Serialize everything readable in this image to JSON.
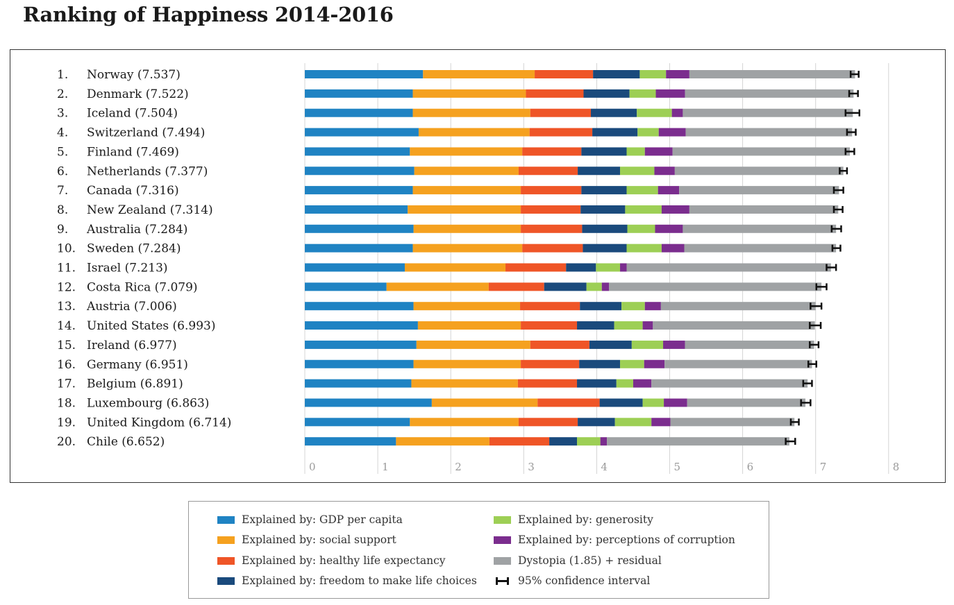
{
  "title": "Ranking of Happiness 2014-2016",
  "chart_data": {
    "type": "bar",
    "orientation": "horizontal",
    "stacked": true,
    "title": "Ranking of Happiness 2014-2016",
    "xlim": [
      0,
      8
    ],
    "xticks": [
      "0",
      "1",
      "2",
      "3",
      "4",
      "5",
      "6",
      "7",
      "8"
    ],
    "grid": true,
    "legend_position": "bottom",
    "ranks": [
      "1.",
      "2.",
      "3.",
      "4.",
      "5.",
      "6.",
      "7.",
      "8.",
      "9.",
      "10.",
      "11.",
      "12.",
      "13.",
      "14.",
      "15.",
      "16.",
      "17.",
      "18.",
      "19.",
      "20."
    ],
    "categories": [
      "Norway (7.537)",
      "Denmark (7.522)",
      "Iceland (7.504)",
      "Switzerland (7.494)",
      "Finland (7.469)",
      "Netherlands (7.377)",
      "Canada (7.316)",
      "New Zealand (7.314)",
      "Australia (7.284)",
      "Sweden (7.284)",
      "Israel (7.213)",
      "Costa Rica (7.079)",
      "Austria (7.006)",
      "United States (6.993)",
      "Ireland (6.977)",
      "Germany (6.951)",
      "Belgium (6.891)",
      "Luxembourg (6.863)",
      "United Kingdom (6.714)",
      "Chile (6.652)"
    ],
    "series": [
      {
        "name": "Explained by: GDP per capita",
        "color": "#1f83c3",
        "values": [
          1.62,
          1.48,
          1.48,
          1.56,
          1.44,
          1.5,
          1.48,
          1.41,
          1.49,
          1.48,
          1.37,
          1.12,
          1.49,
          1.55,
          1.53,
          1.49,
          1.46,
          1.74,
          1.44,
          1.25
        ]
      },
      {
        "name": "Explained by: social support",
        "color": "#f5a11f",
        "values": [
          1.53,
          1.55,
          1.61,
          1.52,
          1.54,
          1.43,
          1.48,
          1.55,
          1.47,
          1.5,
          1.38,
          1.4,
          1.46,
          1.41,
          1.56,
          1.47,
          1.46,
          1.45,
          1.49,
          1.28
        ]
      },
      {
        "name": "Explained by: healthy life expectancy",
        "color": "#ef5527",
        "values": [
          0.8,
          0.79,
          0.83,
          0.86,
          0.81,
          0.81,
          0.83,
          0.82,
          0.84,
          0.83,
          0.83,
          0.76,
          0.82,
          0.77,
          0.81,
          0.8,
          0.81,
          0.85,
          0.81,
          0.82
        ]
      },
      {
        "name": "Explained by: freedom to make life choices",
        "color": "#1a4a7c",
        "values": [
          0.64,
          0.63,
          0.63,
          0.62,
          0.62,
          0.58,
          0.62,
          0.61,
          0.62,
          0.6,
          0.41,
          0.58,
          0.57,
          0.51,
          0.58,
          0.56,
          0.54,
          0.59,
          0.51,
          0.38
        ]
      },
      {
        "name": "Explained by: generosity",
        "color": "#9dcf55",
        "values": [
          0.36,
          0.36,
          0.48,
          0.29,
          0.25,
          0.47,
          0.43,
          0.5,
          0.38,
          0.48,
          0.33,
          0.21,
          0.32,
          0.39,
          0.43,
          0.33,
          0.23,
          0.29,
          0.5,
          0.32
        ]
      },
      {
        "name": "Explained by: perceptions of corruption",
        "color": "#7b2d8e",
        "values": [
          0.32,
          0.4,
          0.15,
          0.37,
          0.38,
          0.28,
          0.29,
          0.38,
          0.38,
          0.31,
          0.09,
          0.1,
          0.22,
          0.14,
          0.3,
          0.28,
          0.25,
          0.32,
          0.26,
          0.09
        ]
      },
      {
        "name": "Dystopia (1.85) + residual",
        "color": "#9fa2a4",
        "values": [
          2.27,
          2.31,
          2.33,
          2.28,
          2.43,
          2.31,
          2.19,
          2.04,
          2.1,
          2.08,
          2.8,
          2.91,
          2.12,
          2.22,
          1.77,
          2.02,
          2.14,
          1.62,
          1.7,
          2.5
        ]
      }
    ],
    "confidence_interval": {
      "name": "95% confidence interval",
      "low": [
        7.48,
        7.46,
        7.41,
        7.43,
        7.41,
        7.33,
        7.25,
        7.25,
        7.22,
        7.23,
        7.15,
        7.01,
        6.93,
        6.92,
        6.92,
        6.9,
        6.83,
        6.8,
        6.66,
        6.59
      ],
      "high": [
        7.59,
        7.58,
        7.6,
        7.55,
        7.53,
        7.43,
        7.38,
        7.37,
        7.35,
        7.34,
        7.28,
        7.15,
        7.08,
        7.07,
        7.04,
        7.01,
        6.95,
        6.93,
        6.77,
        6.72
      ]
    }
  },
  "legend": {
    "items": [
      {
        "label": "Explained by: GDP per capita",
        "color": "#1f83c3"
      },
      {
        "label": "Explained by: social support",
        "color": "#f5a11f"
      },
      {
        "label": "Explained by: healthy life expectancy",
        "color": "#ef5527"
      },
      {
        "label": "Explained by: freedom to make life choices",
        "color": "#1a4a7c"
      },
      {
        "label": "Explained by: generosity",
        "color": "#9dcf55"
      },
      {
        "label": "Explained by: perceptions of corruption",
        "color": "#7b2d8e"
      },
      {
        "label": "Dystopia (1.85) + residual",
        "color": "#9fa2a4"
      },
      {
        "label": "95% confidence interval",
        "color": "#111111"
      }
    ]
  }
}
